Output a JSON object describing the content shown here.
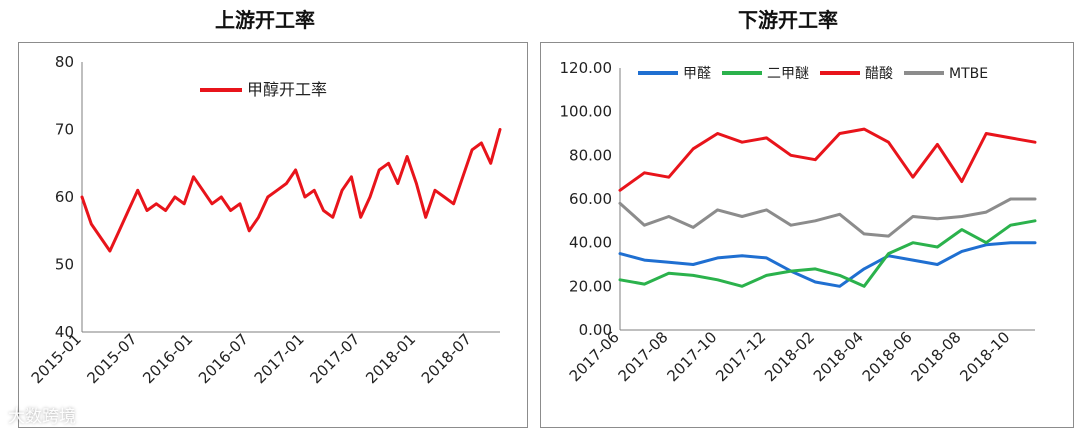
{
  "watermark": "大数跨境",
  "chart_data": [
    {
      "type": "line",
      "title": "上游开工率",
      "ylim": [
        40,
        80
      ],
      "yticks": [
        "80",
        "70",
        "60",
        "50",
        "40"
      ],
      "xticks": [
        "2015-01",
        "2015-07",
        "2016-01",
        "2016-07",
        "2017-01",
        "2017-07",
        "2018-01",
        "2018-07"
      ],
      "grid": false,
      "legend_position": "top-center",
      "series": [
        {
          "name": "甲醇开工率",
          "color": "#e8141b",
          "x": [
            "2015-01",
            "2015-02",
            "2015-03",
            "2015-04",
            "2015-05",
            "2015-06",
            "2015-07",
            "2015-08",
            "2015-09",
            "2015-10",
            "2015-11",
            "2015-12",
            "2016-01",
            "2016-02",
            "2016-03",
            "2016-04",
            "2016-05",
            "2016-06",
            "2016-07",
            "2016-08",
            "2016-09",
            "2016-10",
            "2016-11",
            "2016-12",
            "2017-01",
            "2017-02",
            "2017-03",
            "2017-04",
            "2017-05",
            "2017-06",
            "2017-07",
            "2017-08",
            "2017-09",
            "2017-10",
            "2017-11",
            "2017-12",
            "2018-01",
            "2018-02",
            "2018-03",
            "2018-04",
            "2018-05",
            "2018-06",
            "2018-07",
            "2018-08",
            "2018-09",
            "2018-10"
          ],
          "y": [
            60,
            56,
            54,
            52,
            55,
            58,
            61,
            58,
            59,
            58,
            60,
            59,
            63,
            61,
            59,
            60,
            58,
            59,
            55,
            57,
            60,
            61,
            62,
            64,
            60,
            61,
            58,
            57,
            61,
            63,
            57,
            60,
            64,
            65,
            62,
            66,
            62,
            57,
            61,
            60,
            59,
            63,
            67,
            68,
            65,
            70
          ]
        }
      ]
    },
    {
      "type": "line",
      "title": "下游开工率",
      "ylim": [
        0,
        120
      ],
      "yticks": [
        "120.00",
        "100.00",
        "80.00",
        "60.00",
        "40.00",
        "20.00",
        "0.00"
      ],
      "xticks": [
        "2017-06",
        "2017-08",
        "2017-10",
        "2017-12",
        "2018-02",
        "2018-04",
        "2018-06",
        "2018-08",
        "2018-10"
      ],
      "grid": false,
      "legend_position": "top",
      "series": [
        {
          "name": "甲醛",
          "color": "#1f6fd1",
          "x": [
            "2017-06",
            "2017-07",
            "2017-08",
            "2017-09",
            "2017-10",
            "2017-11",
            "2017-12",
            "2018-01",
            "2018-02",
            "2018-03",
            "2018-04",
            "2018-05",
            "2018-06",
            "2018-07",
            "2018-08",
            "2018-09",
            "2018-10",
            "2018-11"
          ],
          "y": [
            35,
            32,
            31,
            30,
            33,
            34,
            33,
            27,
            22,
            20,
            28,
            34,
            32,
            30,
            36,
            39,
            40,
            40
          ]
        },
        {
          "name": "二甲醚",
          "color": "#2bb24c",
          "x": [
            "2017-06",
            "2017-07",
            "2017-08",
            "2017-09",
            "2017-10",
            "2017-11",
            "2017-12",
            "2018-01",
            "2018-02",
            "2018-03",
            "2018-04",
            "2018-05",
            "2018-06",
            "2018-07",
            "2018-08",
            "2018-09",
            "2018-10",
            "2018-11"
          ],
          "y": [
            23,
            21,
            26,
            25,
            23,
            20,
            25,
            27,
            28,
            25,
            20,
            35,
            40,
            38,
            46,
            40,
            48,
            50
          ]
        },
        {
          "name": "醋酸",
          "color": "#e8141b",
          "x": [
            "2017-06",
            "2017-07",
            "2017-08",
            "2017-09",
            "2017-10",
            "2017-11",
            "2017-12",
            "2018-01",
            "2018-02",
            "2018-03",
            "2018-04",
            "2018-05",
            "2018-06",
            "2018-07",
            "2018-08",
            "2018-09",
            "2018-10",
            "2018-11"
          ],
          "y": [
            64,
            72,
            70,
            83,
            90,
            86,
            88,
            80,
            78,
            90,
            92,
            86,
            70,
            85,
            68,
            90,
            88,
            86
          ]
        },
        {
          "name": "MTBE",
          "color": "#8c8c8c",
          "x": [
            "2017-06",
            "2017-07",
            "2017-08",
            "2017-09",
            "2017-10",
            "2017-11",
            "2017-12",
            "2018-01",
            "2018-02",
            "2018-03",
            "2018-04",
            "2018-05",
            "2018-06",
            "2018-07",
            "2018-08",
            "2018-09",
            "2018-10",
            "2018-11"
          ],
          "y": [
            58,
            48,
            52,
            47,
            55,
            52,
            55,
            48,
            50,
            53,
            44,
            43,
            52,
            51,
            52,
            54,
            60,
            60
          ]
        }
      ]
    }
  ]
}
